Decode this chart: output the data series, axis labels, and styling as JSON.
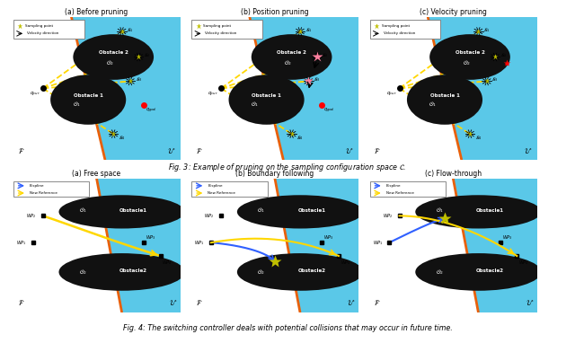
{
  "fig_width": 6.4,
  "fig_height": 3.82,
  "bg_white": "#ffffff",
  "green": "#5DBB7A",
  "cyan": "#5AC8E8",
  "orange": "#E8600A",
  "black_obs": "#111111",
  "gold": "#FFD700",
  "caption1": "Fig. 3: Example of pruning on the sampling configuration space $\\mathcal{C}$.",
  "caption2": "Fig. 4: The switching controller deals with potential collisions that may occur in future time.",
  "sub_cap1": [
    "(a) Before pruning",
    "(b) Position pruning",
    "(c) Velocity pruning"
  ],
  "sub_cap2": [
    "(a) Free space",
    "(b) Boundary following",
    "(c) Flow-through"
  ]
}
